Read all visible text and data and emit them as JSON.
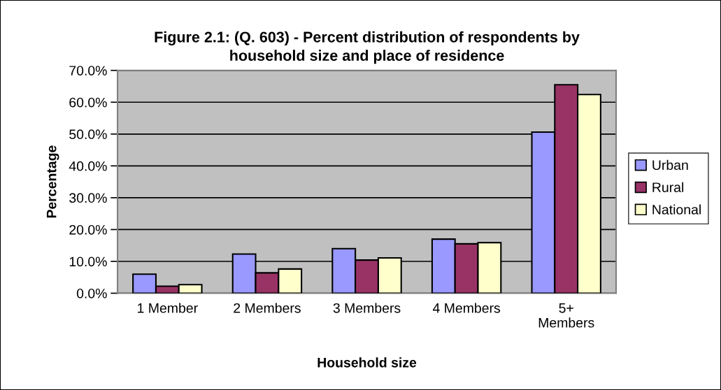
{
  "chart_data": {
    "type": "bar",
    "title": "Figure 2.1: (Q. 603) - Percent distribution of respondents by\nhousehold size and place of residence",
    "xlabel": "Household size",
    "ylabel": "Percentage",
    "categories": [
      "1 Member",
      "2 Members",
      "3 Members",
      "4 Members",
      "5+\nMembers"
    ],
    "series": [
      {
        "name": "Urban",
        "color": "#9999ff",
        "values": [
          6.0,
          12.3,
          14.0,
          17.0,
          50.6
        ]
      },
      {
        "name": "Rural",
        "color": "#993366",
        "values": [
          2.2,
          6.4,
          10.4,
          15.5,
          65.5
        ]
      },
      {
        "name": "National",
        "color": "#ffffcc",
        "values": [
          2.7,
          7.6,
          11.1,
          15.9,
          62.4
        ]
      }
    ],
    "ylim": [
      0,
      70
    ],
    "yticks": [
      {
        "value": 0,
        "label": "0.0%"
      },
      {
        "value": 10,
        "label": "10.0%"
      },
      {
        "value": 20,
        "label": "20.0%"
      },
      {
        "value": 30,
        "label": "30.0%"
      },
      {
        "value": 40,
        "label": "40.0%"
      },
      {
        "value": 50,
        "label": "50.0%"
      },
      {
        "value": 60,
        "label": "60.0%"
      },
      {
        "value": 70,
        "label": "70.0%"
      }
    ],
    "grid": "y",
    "legend": "right"
  }
}
